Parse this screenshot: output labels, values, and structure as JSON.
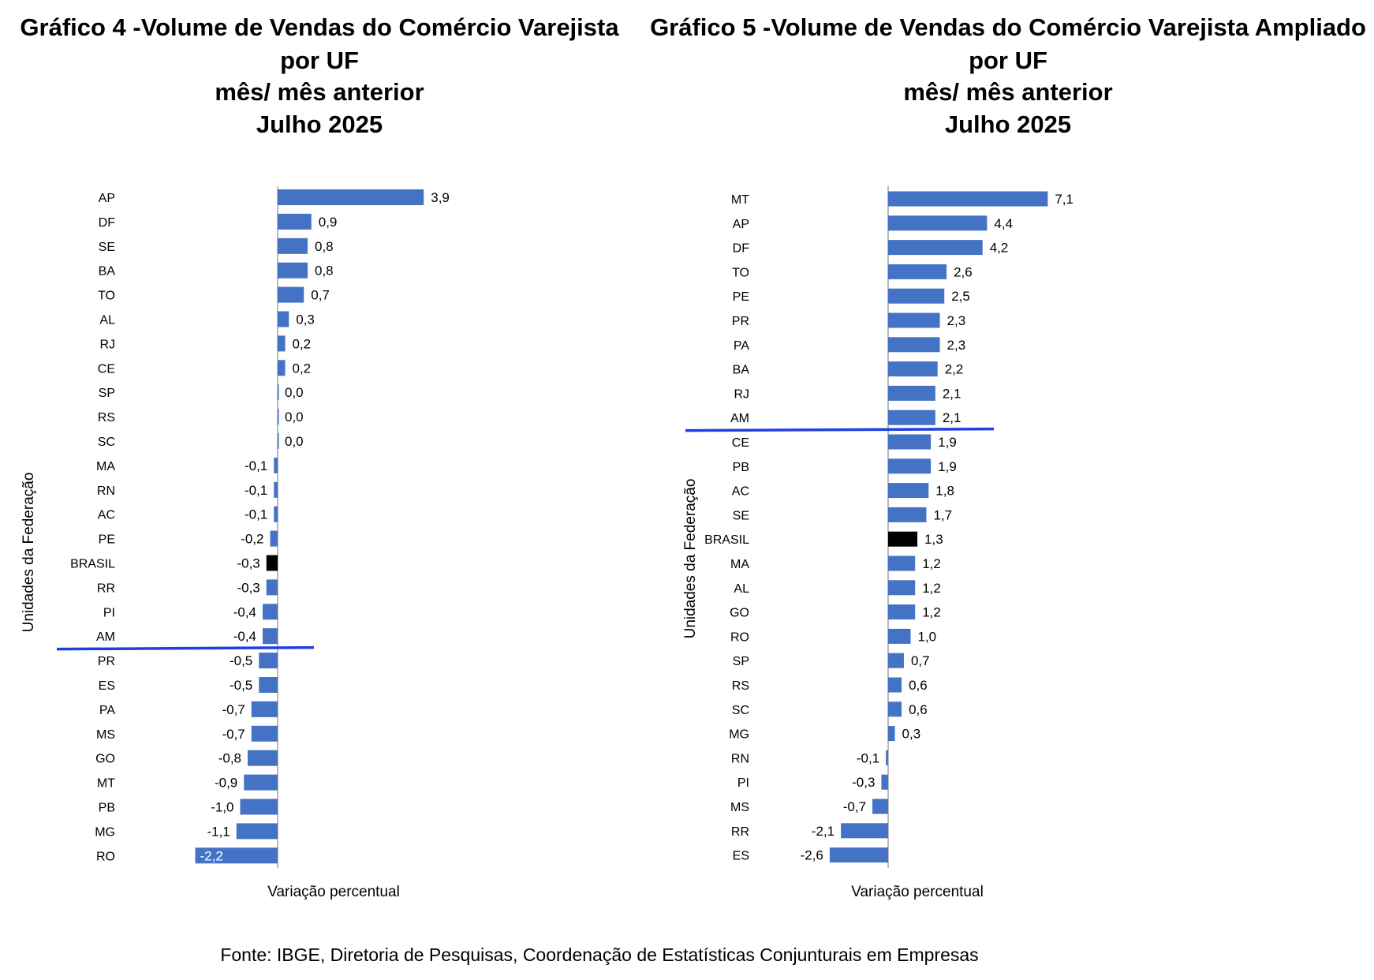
{
  "source": "Fonte: IBGE, Diretoria de Pesquisas, Coordenação de Estatísticas Conjunturais em Empresas",
  "colors": {
    "bar": "#4472C4",
    "highlight_bar": "#000000",
    "divider": "#1f3fe0",
    "axis": "#8c8c8c"
  },
  "chart_data": [
    {
      "type": "bar",
      "orientation": "horizontal",
      "title_lines": [
        "Gráfico 4 -Volume de Vendas do Comércio Varejista",
        "por UF",
        "mês/ mês anterior",
        "Julho 2025"
      ],
      "xlabel": "Variação percentual",
      "ylabel": "Unidades da Federação",
      "highlight": "BRASIL",
      "divider_after": "AM",
      "categories": [
        "AP",
        "DF",
        "SE",
        "BA",
        "TO",
        "AL",
        "RJ",
        "CE",
        "SP",
        "RS",
        "SC",
        "MA",
        "RN",
        "AC",
        "PE",
        "BRASIL",
        "RR",
        "PI",
        "AM",
        "PR",
        "ES",
        "PA",
        "MS",
        "GO",
        "MT",
        "PB",
        "MG",
        "RO"
      ],
      "values": [
        3.9,
        0.9,
        0.8,
        0.8,
        0.7,
        0.3,
        0.2,
        0.2,
        0.0,
        0.0,
        0.0,
        -0.1,
        -0.1,
        -0.1,
        -0.2,
        -0.3,
        -0.3,
        -0.4,
        -0.4,
        -0.5,
        -0.5,
        -0.7,
        -0.7,
        -0.8,
        -0.9,
        -1.0,
        -1.1,
        -2.2
      ],
      "value_labels": [
        "3,9",
        "0,9",
        "0,8",
        "0,8",
        "0,7",
        "0,3",
        "0,2",
        "0,2",
        "0,0",
        "0,0",
        "0,0",
        "-0,1",
        "-0,1",
        "-0,1",
        "-0,2",
        "-0,3",
        "-0,3",
        "-0,4",
        "-0,4",
        "-0,5",
        "-0,5",
        "-0,7",
        "-0,7",
        "-0,8",
        "-0,9",
        "-1,0",
        "-1,1",
        "-2,2"
      ]
    },
    {
      "type": "bar",
      "orientation": "horizontal",
      "title_lines": [
        "Gráfico 5 -Volume de Vendas do Comércio Varejista Ampliado",
        "por UF",
        "mês/ mês anterior",
        "Julho 2025"
      ],
      "xlabel": "Variação percentual",
      "ylabel": "Unidades da Federação",
      "highlight": "BRASIL",
      "divider_after": "AM",
      "categories": [
        "MT",
        "AP",
        "DF",
        "TO",
        "PE",
        "PR",
        "PA",
        "BA",
        "RJ",
        "AM",
        "CE",
        "PB",
        "AC",
        "SE",
        "BRASIL",
        "MA",
        "AL",
        "GO",
        "RO",
        "SP",
        "RS",
        "SC",
        "MG",
        "RN",
        "PI",
        "MS",
        "RR",
        "ES"
      ],
      "values": [
        7.1,
        4.4,
        4.2,
        2.6,
        2.5,
        2.3,
        2.3,
        2.2,
        2.1,
        2.1,
        1.9,
        1.9,
        1.8,
        1.7,
        1.3,
        1.2,
        1.2,
        1.2,
        1.0,
        0.7,
        0.6,
        0.6,
        0.3,
        -0.1,
        -0.3,
        -0.7,
        -2.1,
        -2.6
      ],
      "value_labels": [
        "7,1",
        "4,4",
        "4,2",
        "2,6",
        "2,5",
        "2,3",
        "2,3",
        "2,2",
        "2,1",
        "2,1",
        "1,9",
        "1,9",
        "1,8",
        "1,7",
        "1,3",
        "1,2",
        "1,2",
        "1,2",
        "1,0",
        "0,7",
        "0,6",
        "0,6",
        "0,3",
        "-0,1",
        "-0,3",
        "-0,7",
        "-2,1",
        "-2,6"
      ]
    }
  ]
}
